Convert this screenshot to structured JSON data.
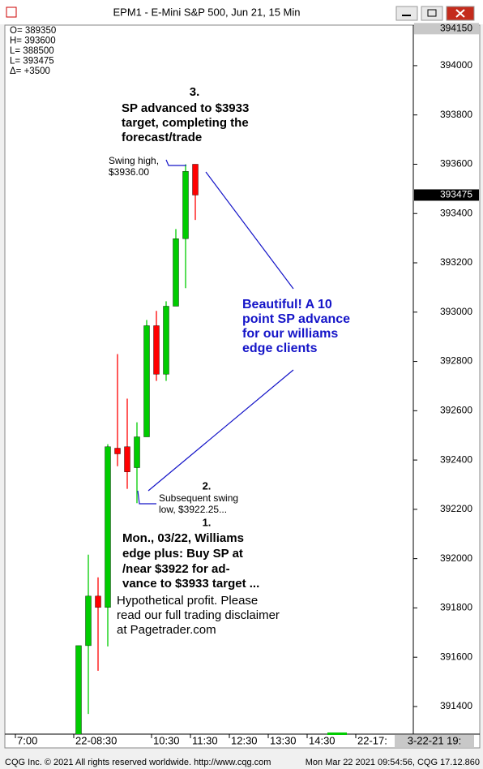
{
  "window_title": "EPM1 - E-Mini S&P 500, Jun 21, 15 Min",
  "chart_data": {
    "type": "candlestick",
    "categories": [
      null,
      "7:00",
      null,
      null,
      null,
      null,
      null,
      "22-08:30",
      null,
      null,
      null,
      null,
      null,
      null,
      null,
      "10:30",
      null,
      null,
      null,
      "11:30",
      null,
      null,
      null,
      "12:30",
      null,
      null,
      null,
      "13:30",
      null,
      null,
      null,
      "14:30",
      null,
      null,
      null,
      null,
      "22-17:",
      null,
      null,
      null,
      null,
      null
    ],
    "open": [
      null,
      null,
      null,
      null,
      null,
      null,
      null,
      391250,
      391647,
      391848,
      391802,
      392448,
      392454,
      392369,
      392494,
      392945,
      392748,
      393024,
      393298,
      393600,
      null,
      null,
      null,
      null,
      null,
      null,
      null,
      null,
      null,
      null,
      null,
      null,
      null,
      null,
      null,
      null,
      null,
      null,
      null,
      null,
      null,
      null
    ],
    "high": [
      null,
      null,
      null,
      null,
      null,
      null,
      null,
      391647,
      392016,
      391924,
      392464,
      392830,
      392649,
      392553,
      392968,
      393005,
      393044,
      393337,
      393600,
      393600,
      null,
      null,
      null,
      null,
      null,
      null,
      null,
      null,
      null,
      null,
      null,
      null,
      null,
      null,
      null,
      null,
      null,
      null,
      null,
      null,
      null,
      null
    ],
    "low": [
      null,
      null,
      null,
      null,
      null,
      null,
      null,
      391250,
      391370,
      391545,
      391644,
      392375,
      392283,
      392225,
      392494,
      392721,
      392721,
      393024,
      393097,
      393374,
      null,
      null,
      null,
      null,
      null,
      null,
      null,
      null,
      null,
      null,
      null,
      null,
      null,
      null,
      null,
      null,
      null,
      null,
      null,
      null,
      null,
      null
    ],
    "close": [
      null,
      null,
      null,
      null,
      null,
      null,
      null,
      391647,
      391848,
      391802,
      392454,
      392425,
      392352,
      392494,
      392945,
      392748,
      393024,
      393298,
      393571,
      393475,
      null,
      null,
      null,
      null,
      null,
      null,
      null,
      null,
      null,
      null,
      null,
      null,
      null,
      null,
      null,
      null,
      null,
      null,
      null,
      null,
      null,
      null
    ],
    "up_color": "#00cc00",
    "down_color": "#ff0000",
    "ylim": [
      391288,
      394161
    ],
    "yticks": [
      391400,
      391600,
      391800,
      392000,
      392200,
      392400,
      392600,
      392800,
      393000,
      393200,
      393400,
      393600,
      393800,
      394000
    ],
    "top_price": 394150,
    "last_price": 393475,
    "info_lines": [
      "O= 389350",
      "H= 393600",
      "L= 388500",
      "L= 393475",
      "Δ=   +3500"
    ],
    "date_box": "3-22-21 19:"
  },
  "annotations": {
    "target": [
      "3.",
      "SP advanced to $3933",
      "target, completing the",
      "forecast/trade"
    ],
    "swing_high": [
      "Swing high,",
      "$3936.00"
    ],
    "comment": [
      "Beautiful! A 10",
      "point SP advance",
      "for our williams",
      "edge clients"
    ],
    "swing_low": [
      "2.",
      "Subsequent swing",
      "low, $3922.25..."
    ],
    "signal": [
      "1.",
      "Mon., 03/22, Williams",
      "edge plus: Buy SP at",
      "/near $3922 for ad-",
      "vance to $3933 target ..."
    ],
    "disclaimer": [
      "Hypothetical profit. Please",
      "read our full trading disclaimer",
      "at Pagetrader.com"
    ]
  },
  "footer": {
    "left": "CQG Inc. © 2021 All rights reserved worldwide. http://www.cqg.com",
    "right": "Mon Mar 22 2021 09:54:56, CQG 17.12.860"
  }
}
